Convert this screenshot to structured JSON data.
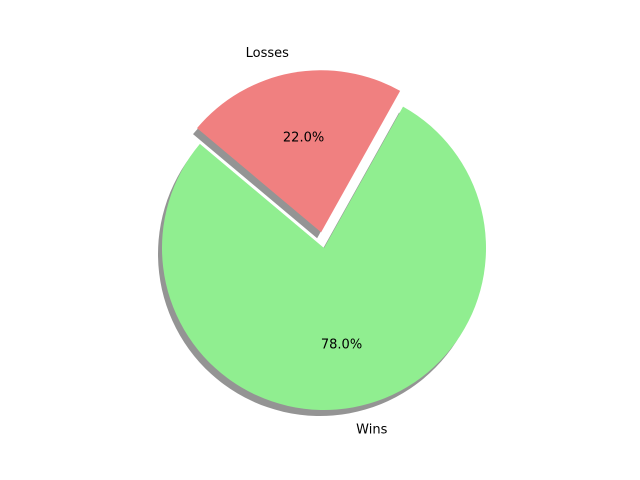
{
  "chart_data": {
    "type": "pie",
    "title": "",
    "slices": [
      {
        "label": "Wins",
        "value": 78.0,
        "percent_label": "78.0%",
        "color": "#90ee90",
        "exploded": false
      },
      {
        "label": "Losses",
        "value": 22.0,
        "percent_label": "22.0%",
        "color": "#f08080",
        "exploded": true
      }
    ],
    "start_angle_deg": 140,
    "direction": "counterclockwise",
    "shadow": true,
    "legend": "none"
  }
}
